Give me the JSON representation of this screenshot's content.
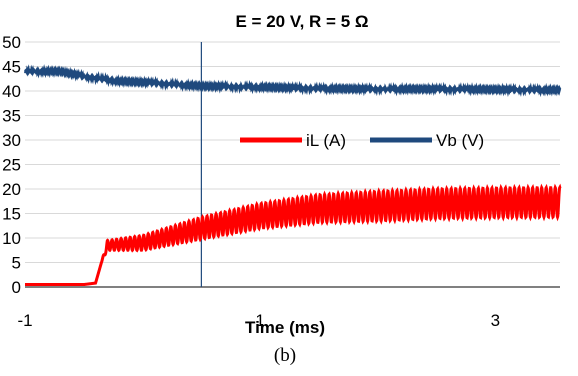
{
  "chart_data": {
    "type": "line",
    "title": "E = 20 V, R = 5 Ω",
    "xlabel": "Time (ms)",
    "ylabel": "",
    "xlim": [
      -1,
      3.55
    ],
    "ylim": [
      0,
      50
    ],
    "x_ticks": [
      "-1",
      "1",
      "3"
    ],
    "y_ticks": [
      "0",
      "5",
      "10",
      "15",
      "20",
      "25",
      "30",
      "35",
      "40",
      "45",
      "50"
    ],
    "grid": true,
    "legend": "center-right",
    "vertical_line_x": 0.5,
    "series": [
      {
        "name": "iL (A)",
        "color": "#ff0000",
        "x": [
          -1.0,
          -0.5,
          -0.4,
          -0.35,
          -0.3,
          0.0,
          0.5,
          1.0,
          1.5,
          2.0,
          2.5,
          3.0,
          3.55
        ],
        "values": [
          0.5,
          0.5,
          0.8,
          5.0,
          8.5,
          9.0,
          12.0,
          14.5,
          16.0,
          16.5,
          17.0,
          17.2,
          17.3
        ],
        "ripple": [
          0,
          0,
          0,
          0,
          1.0,
          1.5,
          2.2,
          2.5,
          2.8,
          3.0,
          3.0,
          3.0,
          3.0
        ]
      },
      {
        "name": "Vb (V)",
        "color": "#1f497d",
        "x": [
          -1.0,
          -0.7,
          -0.5,
          -0.2,
          0.0,
          0.5,
          1.0,
          1.5,
          2.0,
          2.5,
          3.0,
          3.55
        ],
        "values": [
          44.0,
          44.0,
          43.0,
          42.0,
          41.8,
          41.0,
          40.8,
          40.5,
          40.4,
          40.4,
          40.3,
          40.2
        ]
      }
    ]
  },
  "caption": "(b)"
}
